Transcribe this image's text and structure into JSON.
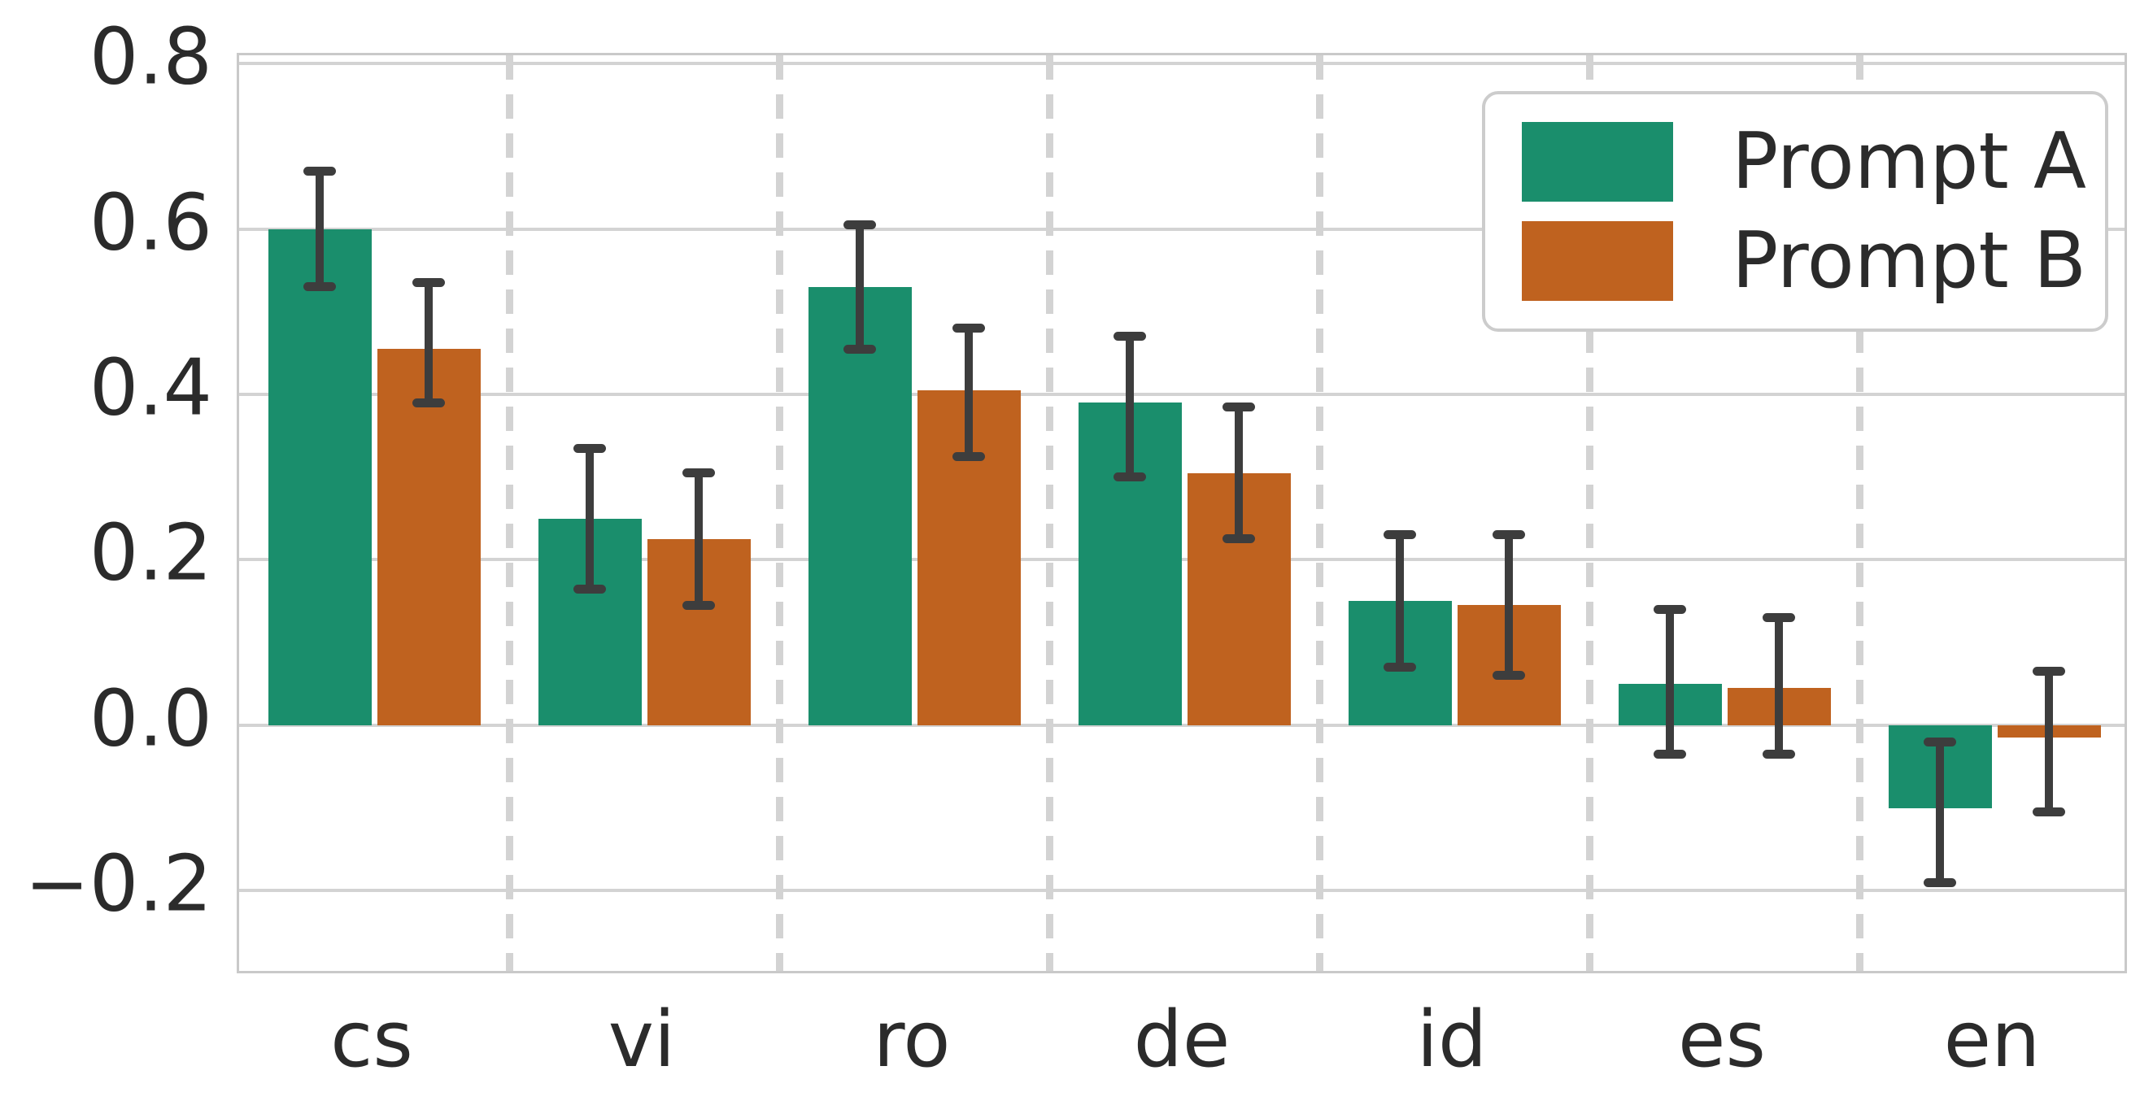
{
  "chart_data": {
    "type": "bar",
    "title": "",
    "xlabel": "",
    "ylabel": "",
    "categories": [
      "cs",
      "vi",
      "ro",
      "de",
      "id",
      "es",
      "en"
    ],
    "series": [
      {
        "name": "Prompt A",
        "color": "#1a8e6c",
        "values": [
          0.6,
          0.25,
          0.53,
          0.39,
          0.15,
          0.05,
          -0.1
        ],
        "err_low": [
          0.53,
          0.165,
          0.455,
          0.3,
          0.07,
          -0.035,
          -0.19
        ],
        "err_high": [
          0.67,
          0.335,
          0.605,
          0.47,
          0.23,
          0.14,
          -0.02
        ]
      },
      {
        "name": "Prompt B",
        "color": "#bf621f",
        "values": [
          0.455,
          0.225,
          0.405,
          0.305,
          0.145,
          0.045,
          -0.015
        ],
        "err_low": [
          0.39,
          0.145,
          0.325,
          0.225,
          0.06,
          -0.035,
          -0.105
        ],
        "err_high": [
          0.535,
          0.305,
          0.48,
          0.385,
          0.23,
          0.13,
          0.065
        ]
      }
    ],
    "yticks": [
      0.8,
      0.6,
      0.4,
      0.2,
      0.0,
      -0.2
    ],
    "ytick_labels": [
      "0.8",
      "0.6",
      "0.4",
      "0.2",
      "0.0",
      "−0.2"
    ],
    "ylim": [
      -0.303,
      0.81
    ],
    "grid": {
      "horizontal": "solid",
      "vertical": "dashed-between-categories"
    },
    "legend": {
      "position": "top-right",
      "entries": [
        "Prompt A",
        "Prompt B"
      ]
    },
    "style": {
      "errorbar_color": "#3d3d3d",
      "gridline_color": "#d3d3d3",
      "spine_color": "#c9c9c9",
      "text_color": "#2b2b2b",
      "background": "#ffffff"
    }
  }
}
